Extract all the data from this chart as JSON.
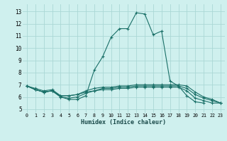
{
  "xlabel": "Humidex (Indice chaleur)",
  "bg_color": "#cff0ee",
  "grid_color": "#aad8d5",
  "line_color": "#1a7068",
  "xlim": [
    -0.5,
    23.5
  ],
  "ylim": [
    4.7,
    13.6
  ],
  "yticks": [
    5,
    6,
    7,
    8,
    9,
    10,
    11,
    12,
    13
  ],
  "xticks": [
    0,
    1,
    2,
    3,
    4,
    5,
    6,
    7,
    8,
    9,
    10,
    11,
    12,
    13,
    14,
    15,
    16,
    17,
    18,
    19,
    20,
    21,
    22,
    23
  ],
  "curve1_x": [
    0,
    1,
    2,
    3,
    4,
    5,
    6,
    7,
    8,
    9,
    10,
    11,
    12,
    13,
    14,
    15,
    16,
    17,
    18,
    19,
    20,
    21
  ],
  "curve1_y": [
    6.9,
    6.6,
    6.4,
    6.5,
    6.0,
    5.8,
    5.8,
    6.1,
    8.2,
    9.3,
    10.9,
    11.6,
    11.6,
    12.9,
    12.8,
    11.1,
    11.4,
    7.3,
    6.9,
    6.1,
    5.6,
    5.5
  ],
  "curve2_x": [
    0,
    1,
    2,
    3,
    4,
    5,
    6,
    7,
    8,
    9,
    10,
    11,
    12,
    13,
    14,
    15,
    16,
    17,
    18,
    19,
    20,
    21,
    22,
    23
  ],
  "curve2_y": [
    6.9,
    6.6,
    6.4,
    6.5,
    6.0,
    5.9,
    6.0,
    6.3,
    6.5,
    6.6,
    6.6,
    6.7,
    6.7,
    6.8,
    6.8,
    6.8,
    6.8,
    6.8,
    6.8,
    6.5,
    5.9,
    5.7,
    5.5,
    5.5
  ],
  "curve3_x": [
    0,
    1,
    2,
    3,
    4,
    5,
    6,
    7,
    8,
    9,
    10,
    11,
    12,
    13,
    14,
    15,
    16,
    17,
    18,
    19,
    20,
    21,
    22,
    23
  ],
  "curve3_y": [
    6.9,
    6.6,
    6.4,
    6.5,
    6.1,
    6.1,
    6.2,
    6.4,
    6.5,
    6.7,
    6.7,
    6.8,
    6.8,
    6.9,
    6.9,
    6.9,
    6.9,
    6.9,
    6.9,
    6.7,
    6.2,
    5.9,
    5.7,
    5.5
  ],
  "curve4_x": [
    0,
    1,
    2,
    3,
    4,
    5,
    6,
    7,
    8,
    9,
    10,
    11,
    12,
    13,
    14,
    15,
    16,
    17,
    18,
    19,
    20,
    21,
    22,
    23
  ],
  "curve4_y": [
    6.9,
    6.7,
    6.5,
    6.6,
    6.1,
    6.1,
    6.2,
    6.5,
    6.7,
    6.8,
    6.8,
    6.9,
    6.9,
    7.0,
    7.0,
    7.0,
    7.0,
    7.0,
    7.0,
    6.9,
    6.4,
    6.0,
    5.8,
    5.5
  ]
}
